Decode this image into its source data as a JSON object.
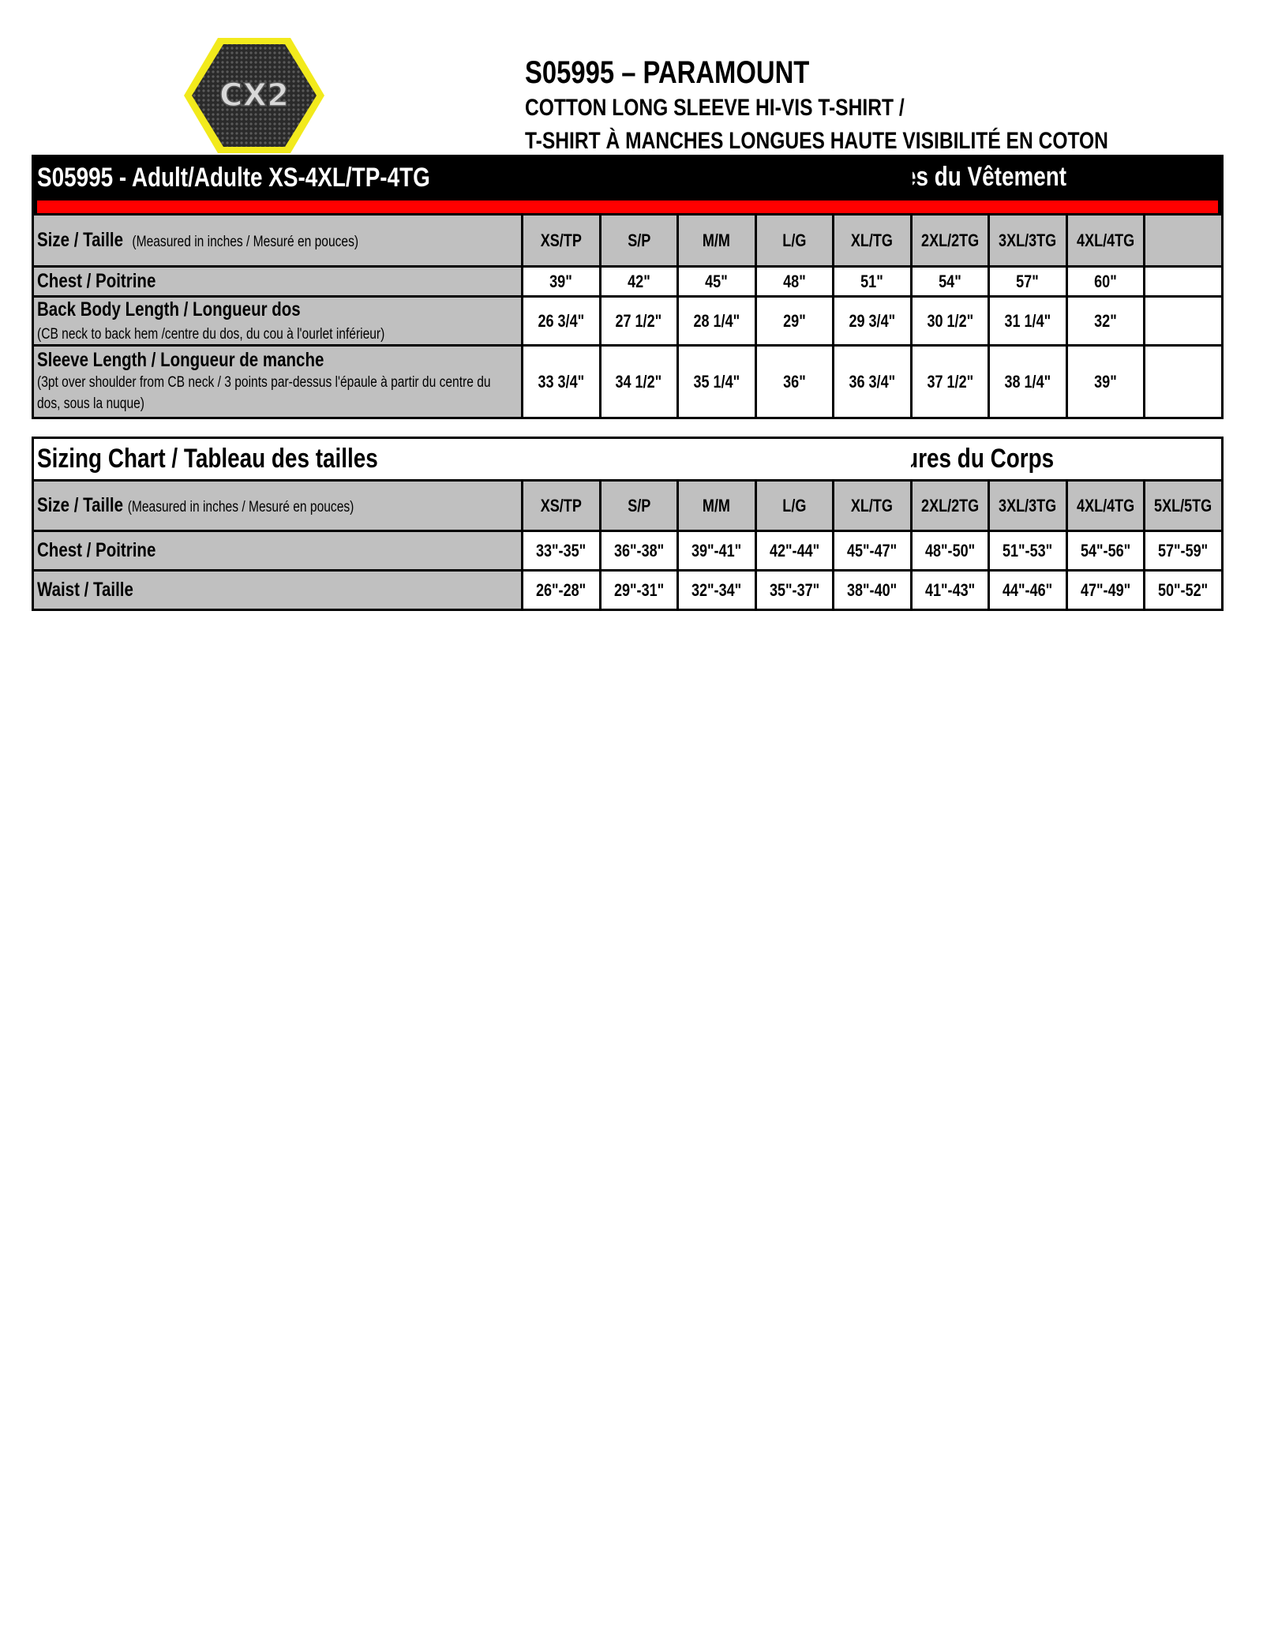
{
  "header": {
    "logo_text": "CX2",
    "title": "S05995 – PARAMOUNT",
    "subtitle_en": "COTTON LONG SLEEVE HI-VIS T-SHIRT /",
    "subtitle_fr": "T-SHIRT À MANCHES LONGUES HAUTE VISIBILITÉ EN COTON"
  },
  "colors": {
    "accent_red": "#ff0000",
    "logo_yellow": "#f2ea1c",
    "header_gray": "#c0c0c0"
  },
  "garment_table": {
    "left_title": "S05995 - Adult/Adulte XS-4XL/TP-4TG",
    "right_title": "Garment Measurements / Mesures du Vêtement",
    "size_label": "Size / Taille",
    "size_note": "(Measured in inches / Mesuré en pouces)",
    "sizes": [
      "XS/TP",
      "S/P",
      "M/M",
      "L/G",
      "XL/TG",
      "2XL/2TG",
      "3XL/3TG",
      "4XL/4TG",
      ""
    ],
    "rows": [
      {
        "label": "Chest / Poitrine",
        "note": "",
        "values": [
          "39\"",
          "42\"",
          "45\"",
          "48\"",
          "51\"",
          "54\"",
          "57\"",
          "60\"",
          ""
        ]
      },
      {
        "label": "Back Body Length / Longueur dos",
        "note": "(CB neck to back hem /centre du dos, du cou à l'ourlet inférieur)",
        "values": [
          "26 3/4\"",
          "27 1/2\"",
          "28 1/4\"",
          "29\"",
          "29 3/4\"",
          "30 1/2\"",
          "31 1/4\"",
          "32\"",
          ""
        ]
      },
      {
        "label": "Sleeve Length / Longueur de manche",
        "note": "(3pt over shoulder from CB neck / 3 points par-dessus l'épaule à partir du centre du dos, sous la nuque)",
        "values": [
          "33 3/4\"",
          "34 1/2\"",
          "35 1/4\"",
          "36\"",
          "36 3/4\"",
          "37 1/2\"",
          "38 1/4\"",
          "39\"",
          ""
        ]
      }
    ]
  },
  "body_table": {
    "left_title": "Sizing Chart / Tableau des tailles",
    "right_title": "Body Measurements / Mesures du Corps",
    "size_label": "Size / Taille",
    "size_note": "(Measured in inches / Mesuré en pouces)",
    "sizes": [
      "XS/TP",
      "S/P",
      "M/M",
      "L/G",
      "XL/TG",
      "2XL/2TG",
      "3XL/3TG",
      "4XL/4TG",
      "5XL/5TG"
    ],
    "rows": [
      {
        "label": "Chest / Poitrine",
        "values": [
          "33\"-35\"",
          "36\"-38\"",
          "39\"-41\"",
          "42\"-44\"",
          "45\"-47\"",
          "48\"-50\"",
          "51\"-53\"",
          "54\"-56\"",
          "57\"-59\""
        ]
      },
      {
        "label": "Waist / Taille",
        "values": [
          "26\"-28\"",
          "29\"-31\"",
          "32\"-34\"",
          "35\"-37\"",
          "38\"-40\"",
          "41\"-43\"",
          "44\"-46\"",
          "47\"-49\"",
          "50\"-52\""
        ]
      }
    ]
  }
}
